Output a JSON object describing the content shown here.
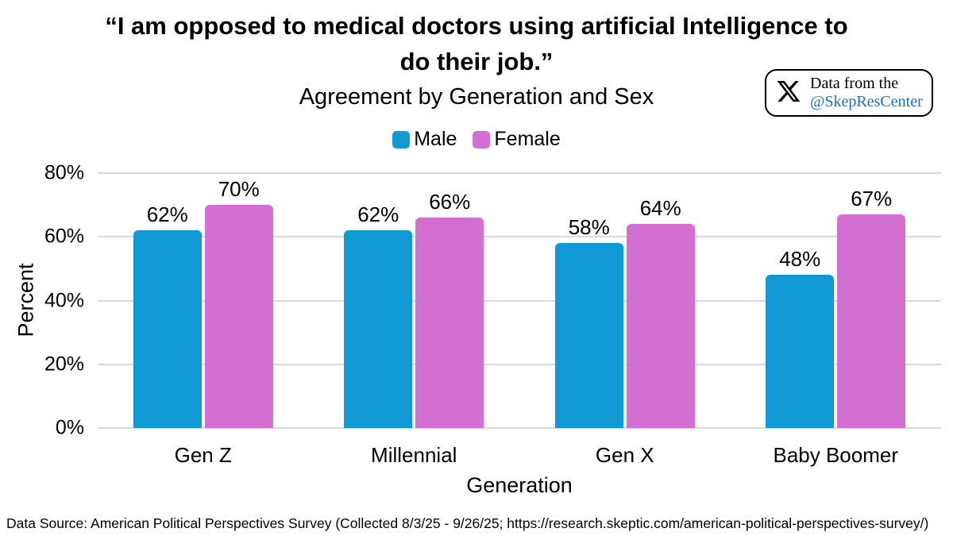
{
  "header": {
    "title_line1": "“I am opposed to medical doctors using artificial Intelligence to",
    "title_line2": "do their job.”",
    "subtitle": "Agreement by Generation and Sex"
  },
  "badge": {
    "line1": "Data from the",
    "handle": "@SkepResCenter",
    "handle_color": "#1F6FBE",
    "icon": "x-logo-icon"
  },
  "chart_data": {
    "type": "bar",
    "title": "“I am opposed to medical doctors using artificial Intelligence to do their job.”",
    "subtitle": "Agreement by Generation and Sex",
    "categories": [
      "Gen Z",
      "Millennial",
      "Gen X",
      "Baby Boomer"
    ],
    "series": [
      {
        "name": "Male",
        "color": "#1199D3",
        "values": [
          62,
          62,
          58,
          48
        ]
      },
      {
        "name": "Female",
        "color": "#D46FD2",
        "values": [
          70,
          66,
          64,
          67
        ]
      }
    ],
    "xlabel": "Generation",
    "ylabel": "Percent",
    "ylim": [
      0,
      80
    ],
    "yticks": [
      "0%",
      "20%",
      "40%",
      "60%",
      "80%"
    ],
    "grid": true,
    "gridline_color": "#D9D9D9",
    "legend_position": "top",
    "value_label_suffix": "%"
  },
  "footer": {
    "text": "Data Source: American Political Perspectives Survey (Collected 8/3/25 - 9/26/25; https://research.skeptic.com/american-political-perspectives-survey/)"
  }
}
